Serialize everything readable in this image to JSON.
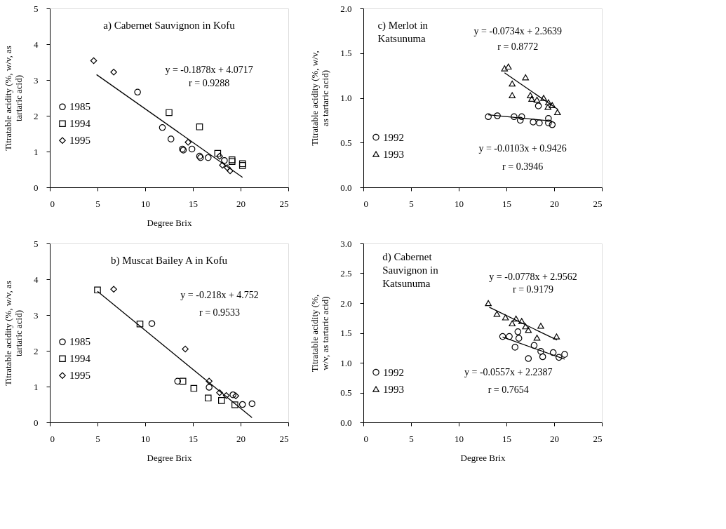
{
  "chart_data": [
    {
      "type": "scatter",
      "title": "a) Cabernet Sauvignon in Kofu",
      "xlabel": "Degree Brix",
      "ylabel": "Titratable acidity (%, w/v, as\ntartaric acid)",
      "xlim": [
        0,
        25
      ],
      "xticks": [
        0,
        5,
        10,
        15,
        20,
        25
      ],
      "ylim": [
        0,
        5
      ],
      "yticks": [
        0,
        1,
        2,
        3,
        4,
        5
      ],
      "grid": false,
      "legend": "left",
      "series": [
        {
          "name": "1985",
          "color": "#000000",
          "marker": "circle",
          "x": [
            9.2,
            11.8,
            12.7,
            13.9,
            14.0,
            14.9,
            15.7,
            15.8,
            16.6,
            18.3
          ],
          "values": [
            2.66,
            1.67,
            1.35,
            1.07,
            1.04,
            1.07,
            0.87,
            0.83,
            0.83,
            0.75
          ]
        },
        {
          "name": "1994",
          "color": "#000000",
          "marker": "square",
          "x": [
            12.5,
            15.7,
            17.6,
            19.1,
            19.1,
            20.2,
            20.2
          ],
          "values": [
            2.09,
            1.69,
            0.95,
            0.77,
            0.72,
            0.66,
            0.61
          ]
        },
        {
          "name": "1995",
          "color": "#000000",
          "marker": "diamond",
          "x": [
            4.6,
            6.7,
            14.5,
            17.8,
            18.1,
            18.6,
            18.9
          ],
          "values": [
            3.54,
            3.22,
            1.26,
            0.87,
            0.62,
            0.55,
            0.46
          ]
        },
        {
          "type": "line",
          "color": "#000000",
          "x": [
            4.9,
            20.2
          ],
          "values": [
            3.15,
            0.28
          ]
        }
      ],
      "annotations": [
        "y = -0.1878x + 4.0717",
        "r = 0.9288"
      ]
    },
    {
      "type": "scatter",
      "title": "c) Merlot in\nKatsunuma",
      "ylabel": "Titratable acidity (%, w/v,\nas tartaric acid)",
      "xlim": [
        0,
        25
      ],
      "xticks": [
        0,
        5,
        10,
        15,
        20,
        25
      ],
      "ylim": [
        0,
        2
      ],
      "yticks": [
        {
          "value": 0,
          "label": "0.0"
        },
        0.5,
        {
          "value": 1,
          "label": "1.0"
        },
        1.5,
        {
          "value": 2,
          "label": "2.0"
        }
      ],
      "grid": false,
      "legend": "bottom left",
      "series": [
        {
          "name": "1992",
          "color": "#000000",
          "marker": "circle",
          "x": [
            13.1,
            14.05,
            15.8,
            16.6,
            16.45,
            17.8,
            18.45,
            18.35,
            19.4,
            19.4,
            19.8
          ],
          "values": [
            0.79,
            0.8,
            0.79,
            0.79,
            0.75,
            0.73,
            0.72,
            0.91,
            0.77,
            0.72,
            0.7
          ]
        },
        {
          "name": "1993",
          "color": "#000000",
          "marker": "triangle",
          "x": [
            14.8,
            15.2,
            15.6,
            15.6,
            17.0,
            17.5,
            17.65,
            18.2,
            18.9,
            19.4,
            19.35,
            19.8,
            20.35
          ],
          "values": [
            1.33,
            1.35,
            1.16,
            1.03,
            1.23,
            1.03,
            0.99,
            0.98,
            1.0,
            0.95,
            0.9,
            0.92,
            0.84
          ]
        },
        {
          "type": "line",
          "color": "#000000",
          "x": [
            14.8,
            20.4
          ],
          "values": [
            1.28,
            0.87
          ]
        },
        {
          "type": "line",
          "color": "#000000",
          "x": [
            13.1,
            19.8
          ],
          "values": [
            0.81,
            0.74
          ]
        }
      ],
      "annotations": [
        "y = -0.0734x + 2.3639",
        "r = 0.8772",
        "y = -0.0103x + 0.9426",
        "r = 0.3946"
      ]
    },
    {
      "type": "scatter",
      "title": "b) Muscat Bailey A in Kofu",
      "xlabel": "Degree Brix",
      "ylabel": "Titratable acidity (%, w/v, as\ntartaric acid)",
      "xlim": [
        0,
        25
      ],
      "xticks": [
        0,
        5,
        10,
        15,
        20,
        25
      ],
      "ylim": [
        0,
        5
      ],
      "yticks": [
        0,
        1,
        2,
        3,
        4,
        5
      ],
      "grid": false,
      "legend": "left",
      "series": [
        {
          "name": "1985",
          "color": "#000000",
          "marker": "circle",
          "x": [
            10.7,
            13.4,
            16.7,
            19.2,
            20.2,
            21.2
          ],
          "values": [
            2.76,
            1.15,
            0.98,
            0.77,
            0.5,
            0.52
          ]
        },
        {
          "name": "1994",
          "color": "#000000",
          "marker": "square",
          "x": [
            5.0,
            9.45,
            13.95,
            15.1,
            16.6,
            18.0,
            19.4
          ],
          "values": [
            3.7,
            2.75,
            1.15,
            0.95,
            0.68,
            0.61,
            0.49
          ]
        },
        {
          "name": "1995",
          "color": "#000000",
          "marker": "diamond",
          "x": [
            6.7,
            14.2,
            16.7,
            17.8,
            18.5,
            19.5
          ],
          "values": [
            3.72,
            2.05,
            1.15,
            0.83,
            0.75,
            0.74
          ]
        },
        {
          "type": "line",
          "color": "#000000",
          "x": [
            5.0,
            21.2
          ],
          "values": [
            3.66,
            0.13
          ]
        }
      ],
      "annotations": [
        "y = -0.218x + 4.752",
        "r = 0.9533"
      ]
    },
    {
      "type": "scatter",
      "title": "d) Cabernet\nSauvignon in\nKatsunuma",
      "xlabel": "Degree Brix",
      "ylabel": "Titratable acidity (%,\nw/v, as tartaric acid)",
      "xlim": [
        0,
        25
      ],
      "xticks": [
        0,
        5,
        10,
        15,
        20,
        25
      ],
      "ylim": [
        0,
        3
      ],
      "yticks": [
        {
          "value": 0,
          "label": "0.0"
        },
        0.5,
        {
          "value": 1,
          "label": "1.0"
        },
        1.5,
        {
          "value": 2,
          "label": "2.0"
        },
        2.5,
        {
          "value": 3,
          "label": "3.0"
        }
      ],
      "grid": false,
      "legend": "bottom left",
      "series": [
        {
          "name": "1992",
          "color": "#000000",
          "marker": "circle",
          "x": [
            14.6,
            15.3,
            16.2,
            16.3,
            15.9,
            17.3,
            17.9,
            18.6,
            18.8,
            19.9,
            20.5,
            21.1
          ],
          "values": [
            1.44,
            1.44,
            1.52,
            1.41,
            1.26,
            1.07,
            1.29,
            1.19,
            1.1,
            1.17,
            1.09,
            1.14
          ]
        },
        {
          "name": "1993",
          "color": "#000000",
          "marker": "triangle",
          "x": [
            13.1,
            14.0,
            14.9,
            15.6,
            16.0,
            16.6,
            17.0,
            17.3,
            18.2,
            18.6,
            20.25
          ],
          "values": [
            2.0,
            1.82,
            1.76,
            1.66,
            1.74,
            1.7,
            1.61,
            1.55,
            1.42,
            1.62,
            1.44
          ]
        },
        {
          "type": "line",
          "color": "#000000",
          "x": [
            13.2,
            20.3
          ],
          "values": [
            1.93,
            1.38
          ]
        },
        {
          "type": "line",
          "color": "#000000",
          "x": [
            14.6,
            21.1
          ],
          "values": [
            1.43,
            1.06
          ]
        }
      ],
      "annotations": [
        "y = -0.0778x + 2.9562",
        "r = 0.9179",
        "y = -0.0557x + 2.2387",
        "r = 0.7654"
      ]
    }
  ]
}
